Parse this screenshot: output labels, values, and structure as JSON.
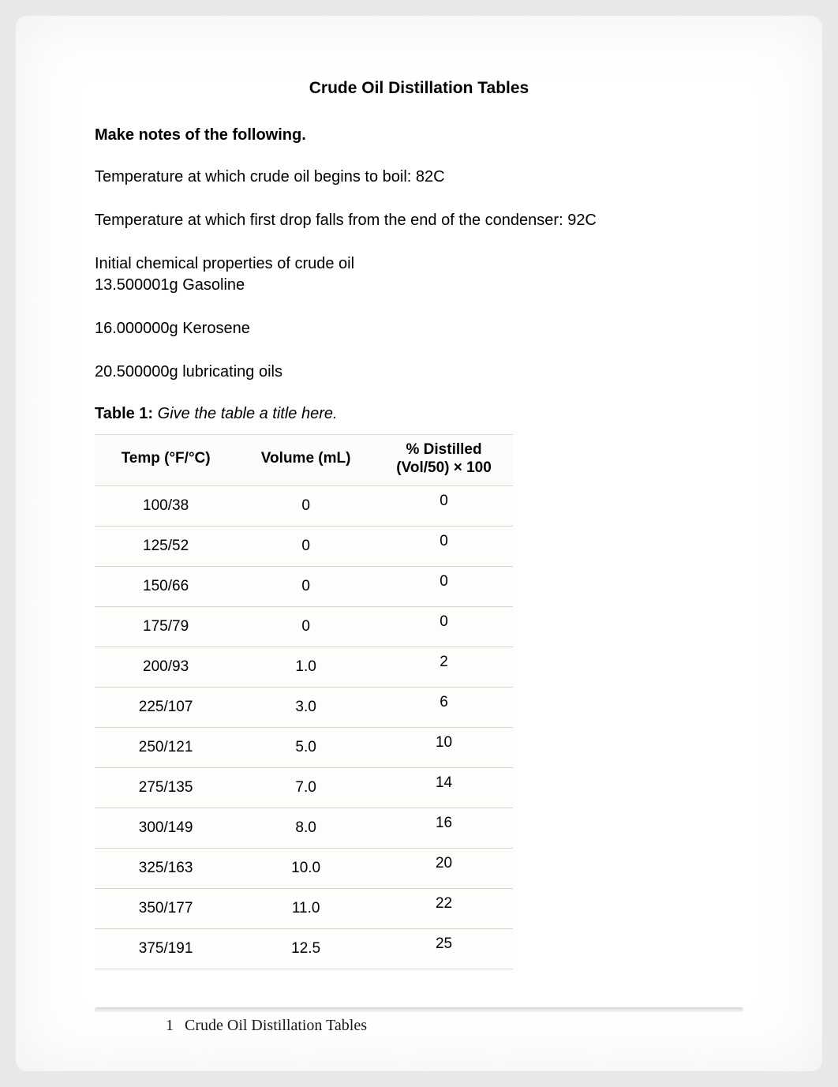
{
  "title": "Crude Oil Distillation Tables",
  "subtitle": "Make notes of the following.",
  "boil_line": "Temperature at which crude oil begins to boil: 82C",
  "firstdrop_line": "Temperature at which first drop falls from the end of the condenser: 92C",
  "initprops_label": "Initial chemical properties of crude oil",
  "gasoline_line": "13.500001g Gasoline",
  "kerosene_line": "16.000000g Kerosene",
  "luboil_line": "20.500000g lubricating oils",
  "table_caption_label": "Table 1: ",
  "table_caption_desc": "Give the table a title here.",
  "headers": {
    "temp": "Temp (°F/°C)",
    "vol": "Volume (mL)",
    "pct_l1": "% Distilled",
    "pct_l2": "(Vol/50) × 100"
  },
  "rows": [
    {
      "temp": "100/38",
      "vol": "0",
      "pct": "0"
    },
    {
      "temp": "125/52",
      "vol": "0",
      "pct": "0"
    },
    {
      "temp": "150/66",
      "vol": "0",
      "pct": "0"
    },
    {
      "temp": "175/79",
      "vol": "0",
      "pct": "0"
    },
    {
      "temp": "200/93",
      "vol": "1.0",
      "pct": "2"
    },
    {
      "temp": "225/107",
      "vol": "3.0",
      "pct": "6"
    },
    {
      "temp": "250/121",
      "vol": "5.0",
      "pct": "10"
    },
    {
      "temp": "275/135",
      "vol": "7.0",
      "pct": "14"
    },
    {
      "temp": "300/149",
      "vol": "8.0",
      "pct": "16"
    },
    {
      "temp": "325/163",
      "vol": "10.0",
      "pct": "20"
    },
    {
      "temp": "350/177",
      "vol": "11.0",
      "pct": "22"
    },
    {
      "temp": "375/191",
      "vol": "12.5",
      "pct": "25"
    }
  ],
  "footer": {
    "page_num": "1",
    "text": "Crude Oil Distillation Tables"
  },
  "colors": {
    "page_bg": "#ffffff",
    "body_bg": "#e8e8ea",
    "border": "#d8d6d0",
    "row_bg": "#fdfdfb"
  }
}
